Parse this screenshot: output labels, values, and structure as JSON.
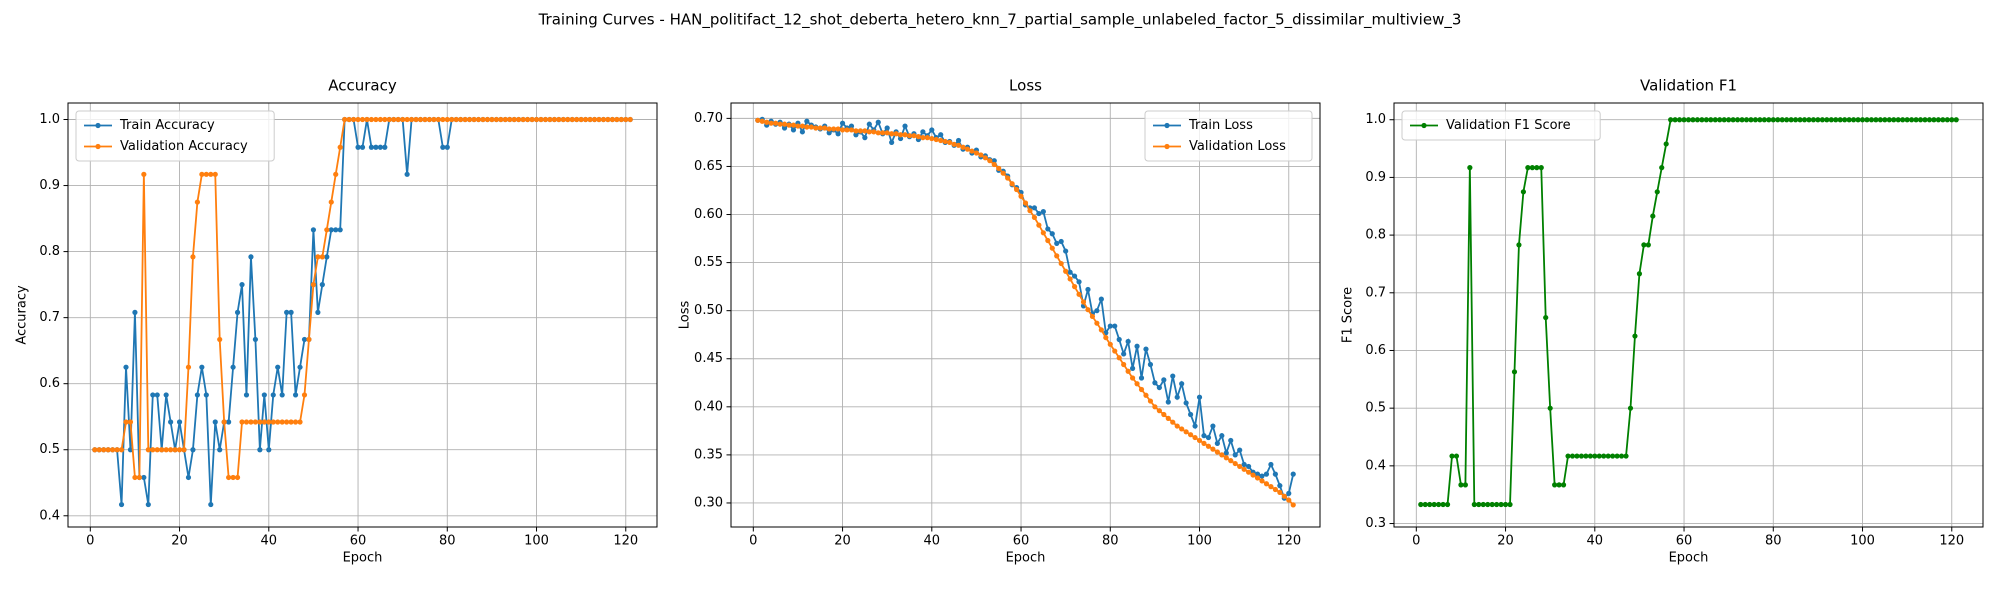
{
  "title": "Training Curves - HAN_politifact_12_shot_deberta_hetero_knn_7_partial_sample_unlabeled_factor_5_dissimilar_multiview_3",
  "chart_data": [
    {
      "type": "line",
      "title": "Accuracy",
      "xlabel": "Epoch",
      "ylabel": "Accuracy",
      "grid": true,
      "legend": "upper left",
      "xlim": [
        -5,
        127
      ],
      "xticks": [
        0,
        20,
        40,
        60,
        80,
        100,
        120
      ],
      "ylim": [
        0.383,
        1.025
      ],
      "yticks": [
        0.4,
        0.5,
        0.6,
        0.7,
        0.8,
        0.9,
        {
          "value": 1,
          "label": "1.0"
        }
      ],
      "x": [
        1,
        2,
        3,
        4,
        5,
        6,
        7,
        8,
        9,
        10,
        11,
        12,
        13,
        14,
        15,
        16,
        17,
        18,
        19,
        20,
        21,
        22,
        23,
        24,
        25,
        26,
        27,
        28,
        29,
        30,
        31,
        32,
        33,
        34,
        35,
        36,
        37,
        38,
        39,
        40,
        41,
        42,
        43,
        44,
        45,
        46,
        47,
        48,
        49,
        50,
        51,
        52,
        53,
        54,
        55,
        56,
        57,
        58,
        59,
        60,
        61,
        62,
        63,
        64,
        65,
        66,
        67,
        68,
        69,
        70,
        71,
        72,
        73,
        74,
        75,
        76,
        77,
        78,
        79,
        80,
        81,
        82,
        83,
        84,
        85,
        86,
        87,
        88,
        89,
        90,
        91,
        92,
        93,
        94,
        95,
        96,
        97,
        98,
        99,
        100,
        101,
        102,
        103,
        104,
        105,
        106,
        107,
        108,
        109,
        110,
        111,
        112,
        113,
        114,
        115,
        116,
        117,
        118,
        119,
        120,
        121
      ],
      "series": [
        {
          "name": "Train Accuracy",
          "color": "#1f77b4",
          "values": [
            0.5,
            0.5,
            0.5,
            0.5,
            0.5,
            0.5,
            0.417,
            0.625,
            0.5,
            0.708,
            0.458,
            0.458,
            0.417,
            0.583,
            0.583,
            0.5,
            0.583,
            0.542,
            0.5,
            0.542,
            0.5,
            0.458,
            0.5,
            0.583,
            0.625,
            0.583,
            0.417,
            0.542,
            0.5,
            0.542,
            0.542,
            0.625,
            0.708,
            0.75,
            0.583,
            0.792,
            0.667,
            0.5,
            0.583,
            0.5,
            0.583,
            0.625,
            0.583,
            0.708,
            0.708,
            0.583,
            0.625,
            0.667,
            0.667,
            0.833,
            0.708,
            0.75,
            0.792,
            0.833,
            0.833,
            0.833,
            1,
            1,
            1,
            0.958,
            0.958,
            1,
            0.958,
            0.958,
            0.958,
            0.958,
            1,
            1,
            1,
            1,
            0.917,
            1,
            1,
            1,
            1,
            1,
            1,
            1,
            0.958,
            0.958,
            1,
            1,
            1,
            1,
            1,
            1,
            1,
            1,
            1,
            1,
            1,
            1,
            1,
            1,
            1,
            1,
            1,
            1,
            1,
            1,
            1,
            1,
            1,
            1,
            1,
            1,
            1,
            1,
            1,
            1,
            1,
            1,
            1,
            1,
            1,
            1,
            1,
            1,
            1,
            1,
            1
          ]
        },
        {
          "name": "Validation Accuracy",
          "color": "#ff7f0e",
          "values": [
            0.5,
            0.5,
            0.5,
            0.5,
            0.5,
            0.5,
            0.5,
            0.542,
            0.542,
            0.458,
            0.458,
            0.917,
            0.5,
            0.5,
            0.5,
            0.5,
            0.5,
            0.5,
            0.5,
            0.5,
            0.5,
            0.625,
            0.792,
            0.875,
            0.917,
            0.917,
            0.917,
            0.917,
            0.667,
            0.542,
            0.458,
            0.458,
            0.458,
            0.542,
            0.542,
            0.542,
            0.542,
            0.542,
            0.542,
            0.542,
            0.542,
            0.542,
            0.542,
            0.542,
            0.542,
            0.542,
            0.542,
            0.583,
            0.667,
            0.75,
            0.792,
            0.792,
            0.833,
            0.875,
            0.917,
            0.958,
            1,
            1,
            1,
            1,
            1,
            1,
            1,
            1,
            1,
            1,
            1,
            1,
            1,
            1,
            1,
            1,
            1,
            1,
            1,
            1,
            1,
            1,
            1,
            1,
            1,
            1,
            1,
            1,
            1,
            1,
            1,
            1,
            1,
            1,
            1,
            1,
            1,
            1,
            1,
            1,
            1,
            1,
            1,
            1,
            1,
            1,
            1,
            1,
            1,
            1,
            1,
            1,
            1,
            1,
            1,
            1,
            1,
            1,
            1,
            1,
            1,
            1,
            1,
            1,
            1
          ]
        }
      ]
    },
    {
      "type": "line",
      "title": "Loss",
      "xlabel": "Epoch",
      "ylabel": "Loss",
      "grid": true,
      "legend": "upper right",
      "xlim": [
        -5,
        127
      ],
      "xticks": [
        0,
        20,
        40,
        60,
        80,
        100,
        120
      ],
      "ylim": [
        0.275,
        0.716
      ],
      "yticks": [
        {
          "value": 0.3,
          "label": "0.30"
        },
        {
          "value": 0.35,
          "label": "0.35"
        },
        {
          "value": 0.4,
          "label": "0.40"
        },
        {
          "value": 0.45,
          "label": "0.45"
        },
        {
          "value": 0.5,
          "label": "0.50"
        },
        {
          "value": 0.55,
          "label": "0.55"
        },
        {
          "value": 0.6,
          "label": "0.60"
        },
        {
          "value": 0.65,
          "label": "0.65"
        },
        {
          "value": 0.7,
          "label": "0.70"
        }
      ],
      "x": [
        1,
        2,
        3,
        4,
        5,
        6,
        7,
        8,
        9,
        10,
        11,
        12,
        13,
        14,
        15,
        16,
        17,
        18,
        19,
        20,
        21,
        22,
        23,
        24,
        25,
        26,
        27,
        28,
        29,
        30,
        31,
        32,
        33,
        34,
        35,
        36,
        37,
        38,
        39,
        40,
        41,
        42,
        43,
        44,
        45,
        46,
        47,
        48,
        49,
        50,
        51,
        52,
        53,
        54,
        55,
        56,
        57,
        58,
        59,
        60,
        61,
        62,
        63,
        64,
        65,
        66,
        67,
        68,
        69,
        70,
        71,
        72,
        73,
        74,
        75,
        76,
        77,
        78,
        79,
        80,
        81,
        82,
        83,
        84,
        85,
        86,
        87,
        88,
        89,
        90,
        91,
        92,
        93,
        94,
        95,
        96,
        97,
        98,
        99,
        100,
        101,
        102,
        103,
        104,
        105,
        106,
        107,
        108,
        109,
        110,
        111,
        112,
        113,
        114,
        115,
        116,
        117,
        118,
        119,
        120,
        121
      ],
      "series": [
        {
          "name": "Train Loss",
          "color": "#1f77b4",
          "values": [
            0.698,
            0.699,
            0.693,
            0.697,
            0.694,
            0.696,
            0.69,
            0.694,
            0.688,
            0.695,
            0.686,
            0.697,
            0.693,
            0.691,
            0.689,
            0.692,
            0.685,
            0.688,
            0.684,
            0.695,
            0.69,
            0.692,
            0.683,
            0.686,
            0.68,
            0.694,
            0.688,
            0.696,
            0.684,
            0.69,
            0.675,
            0.686,
            0.679,
            0.692,
            0.681,
            0.684,
            0.678,
            0.686,
            0.682,
            0.688,
            0.68,
            0.683,
            0.675,
            0.676,
            0.672,
            0.677,
            0.668,
            0.67,
            0.664,
            0.667,
            0.66,
            0.661,
            0.657,
            0.656,
            0.646,
            0.645,
            0.64,
            0.631,
            0.628,
            0.623,
            0.61,
            0.607,
            0.607,
            0.601,
            0.603,
            0.585,
            0.58,
            0.57,
            0.572,
            0.562,
            0.54,
            0.536,
            0.53,
            0.505,
            0.522,
            0.497,
            0.5,
            0.512,
            0.477,
            0.484,
            0.484,
            0.47,
            0.455,
            0.468,
            0.44,
            0.463,
            0.43,
            0.46,
            0.444,
            0.425,
            0.42,
            0.428,
            0.405,
            0.432,
            0.41,
            0.424,
            0.404,
            0.392,
            0.38,
            0.41,
            0.37,
            0.368,
            0.38,
            0.362,
            0.37,
            0.352,
            0.365,
            0.35,
            0.355,
            0.34,
            0.338,
            0.332,
            0.33,
            0.328,
            0.33,
            0.34,
            0.33,
            0.318,
            0.305,
            0.31,
            0.33
          ]
        },
        {
          "name": "Validation Loss",
          "color": "#ff7f0e",
          "values": [
            0.698,
            0.697,
            0.696,
            0.695,
            0.695,
            0.694,
            0.694,
            0.693,
            0.693,
            0.692,
            0.692,
            0.691,
            0.691,
            0.69,
            0.69,
            0.69,
            0.689,
            0.689,
            0.689,
            0.688,
            0.688,
            0.688,
            0.687,
            0.687,
            0.687,
            0.686,
            0.686,
            0.685,
            0.685,
            0.685,
            0.684,
            0.684,
            0.683,
            0.683,
            0.682,
            0.682,
            0.681,
            0.68,
            0.68,
            0.679,
            0.678,
            0.677,
            0.676,
            0.675,
            0.673,
            0.672,
            0.67,
            0.668,
            0.666,
            0.664,
            0.662,
            0.659,
            0.656,
            0.652,
            0.648,
            0.643,
            0.638,
            0.632,
            0.626,
            0.619,
            0.612,
            0.604,
            0.597,
            0.589,
            0.581,
            0.573,
            0.565,
            0.557,
            0.549,
            0.541,
            0.533,
            0.525,
            0.517,
            0.509,
            0.501,
            0.494,
            0.487,
            0.48,
            0.472,
            0.465,
            0.458,
            0.451,
            0.444,
            0.437,
            0.43,
            0.424,
            0.418,
            0.412,
            0.406,
            0.4,
            0.396,
            0.392,
            0.388,
            0.384,
            0.38,
            0.377,
            0.374,
            0.371,
            0.368,
            0.365,
            0.362,
            0.359,
            0.356,
            0.353,
            0.35,
            0.347,
            0.344,
            0.341,
            0.338,
            0.335,
            0.332,
            0.329,
            0.326,
            0.323,
            0.32,
            0.317,
            0.314,
            0.311,
            0.307,
            0.303,
            0.298
          ]
        }
      ]
    },
    {
      "type": "line",
      "title": "Validation F1",
      "xlabel": "Epoch",
      "ylabel": "F1 Score",
      "grid": true,
      "legend": "upper left",
      "xlim": [
        -5,
        127
      ],
      "xticks": [
        0,
        20,
        40,
        60,
        80,
        100,
        120
      ],
      "ylim": [
        0.294,
        1.029
      ],
      "yticks": [
        0.3,
        0.4,
        0.5,
        0.6,
        0.7,
        0.8,
        0.9,
        {
          "value": 1,
          "label": "1.0"
        }
      ],
      "x": [
        1,
        2,
        3,
        4,
        5,
        6,
        7,
        8,
        9,
        10,
        11,
        12,
        13,
        14,
        15,
        16,
        17,
        18,
        19,
        20,
        21,
        22,
        23,
        24,
        25,
        26,
        27,
        28,
        29,
        30,
        31,
        32,
        33,
        34,
        35,
        36,
        37,
        38,
        39,
        40,
        41,
        42,
        43,
        44,
        45,
        46,
        47,
        48,
        49,
        50,
        51,
        52,
        53,
        54,
        55,
        56,
        57,
        58,
        59,
        60,
        61,
        62,
        63,
        64,
        65,
        66,
        67,
        68,
        69,
        70,
        71,
        72,
        73,
        74,
        75,
        76,
        77,
        78,
        79,
        80,
        81,
        82,
        83,
        84,
        85,
        86,
        87,
        88,
        89,
        90,
        91,
        92,
        93,
        94,
        95,
        96,
        97,
        98,
        99,
        100,
        101,
        102,
        103,
        104,
        105,
        106,
        107,
        108,
        109,
        110,
        111,
        112,
        113,
        114,
        115,
        116,
        117,
        118,
        119,
        120,
        121
      ],
      "series": [
        {
          "name": "Validation F1 Score",
          "color": "#008000",
          "values": [
            0.333,
            0.333,
            0.333,
            0.333,
            0.333,
            0.333,
            0.333,
            0.417,
            0.417,
            0.367,
            0.367,
            0.917,
            0.333,
            0.333,
            0.333,
            0.333,
            0.333,
            0.333,
            0.333,
            0.333,
            0.333,
            0.563,
            0.783,
            0.875,
            0.917,
            0.917,
            0.917,
            0.917,
            0.657,
            0.5,
            0.367,
            0.367,
            0.367,
            0.417,
            0.417,
            0.417,
            0.417,
            0.417,
            0.417,
            0.417,
            0.417,
            0.417,
            0.417,
            0.417,
            0.417,
            0.417,
            0.417,
            0.5,
            0.625,
            0.733,
            0.783,
            0.783,
            0.833,
            0.875,
            0.917,
            0.958,
            1,
            1,
            1,
            1,
            1,
            1,
            1,
            1,
            1,
            1,
            1,
            1,
            1,
            1,
            1,
            1,
            1,
            1,
            1,
            1,
            1,
            1,
            1,
            1,
            1,
            1,
            1,
            1,
            1,
            1,
            1,
            1,
            1,
            1,
            1,
            1,
            1,
            1,
            1,
            1,
            1,
            1,
            1,
            1,
            1,
            1,
            1,
            1,
            1,
            1,
            1,
            1,
            1,
            1,
            1,
            1,
            1,
            1,
            1,
            1,
            1,
            1,
            1,
            1,
            1
          ]
        }
      ]
    }
  ]
}
